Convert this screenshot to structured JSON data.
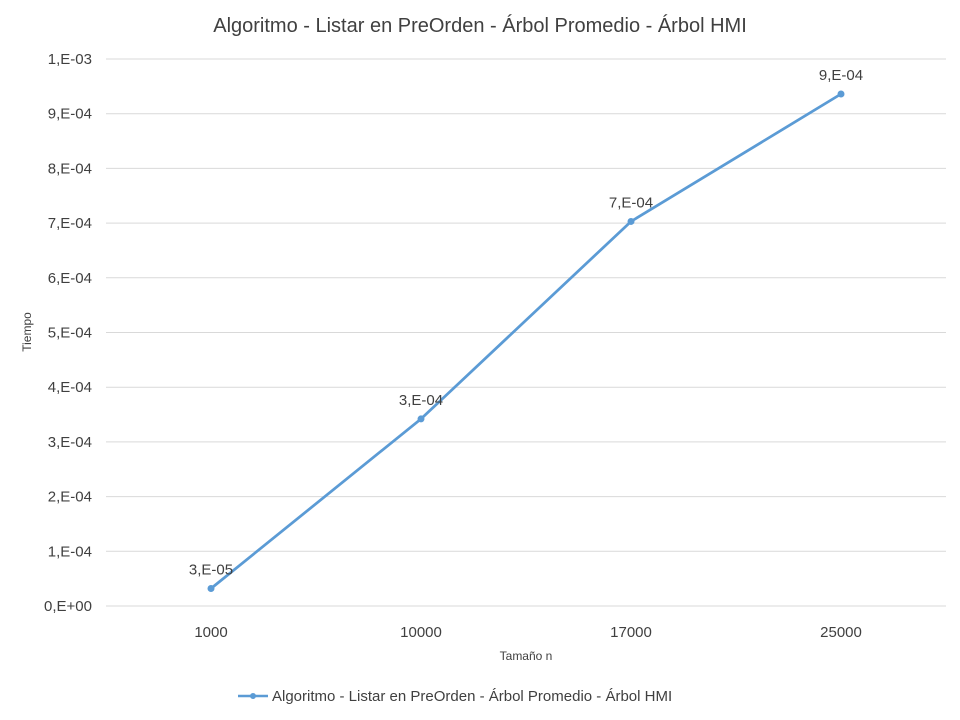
{
  "chart_data": {
    "type": "line",
    "title": "Algoritmo - Listar en PreOrden - Árbol Promedio - Árbol HMI",
    "xlabel": "Tamaño n",
    "ylabel": "Tiempo",
    "categories": [
      "1000",
      "10000",
      "17000",
      "25000"
    ],
    "series": [
      {
        "name": "Algoritmo - Listar en PreOrden - Árbol Promedio - Árbol HMI",
        "values": [
          3.2e-05,
          0.000342,
          0.000703,
          0.000936
        ],
        "data_labels": [
          "3,E-05",
          "3,E-04",
          "7,E-04",
          "9,E-04"
        ],
        "color": "#5b9bd5"
      }
    ],
    "ylim": [
      0,
      0.001
    ],
    "y_ticks": [
      0,
      0.0001,
      0.0002,
      0.0003,
      0.0004,
      0.0005,
      0.0006,
      0.0007,
      0.0008,
      0.0009,
      0.001
    ],
    "y_tick_labels": [
      "0,E+00",
      "1,E-04",
      "2,E-04",
      "3,E-04",
      "4,E-04",
      "5,E-04",
      "6,E-04",
      "7,E-04",
      "8,E-04",
      "9,E-04",
      "1,E-03"
    ],
    "grid": "horizontal",
    "legend_position": "bottom",
    "colors": {
      "gridline": "#d9d9d9",
      "text": "#404040"
    }
  }
}
